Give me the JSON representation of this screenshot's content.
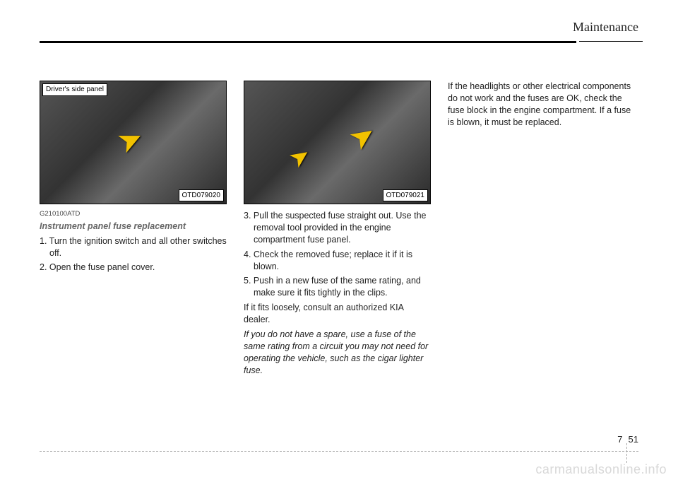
{
  "header": {
    "title": "Maintenance"
  },
  "col1": {
    "figure": {
      "topLeftTag": "Driver's side panel",
      "bottomRightTag": "OTD079020"
    },
    "code": "G210100ATD",
    "subhead": "Instrument panel fuse replacement",
    "steps": [
      "1. Turn the ignition switch and all other switches off.",
      "2. Open the fuse panel cover."
    ]
  },
  "col2": {
    "figure": {
      "bottomRightTag": "OTD079021"
    },
    "steps": [
      "3. Pull the suspected fuse straight out. Use the removal tool provided in the engine compartment fuse panel.",
      "4. Check the removed fuse; replace it if it is blown.",
      "5. Push in a new fuse of the same rating, and make sure it fits tightly in the clips."
    ],
    "para1": "If it fits loosely, consult an authorized KIA dealer.",
    "para2": "If you do not have a spare, use a fuse of the same rating from a circuit you may not need for operating the vehicle, such as the cigar lighter fuse."
  },
  "col3": {
    "para": "If the headlights or other electrical components do not work and the fuses are OK, check the fuse block in the engine compartment. If a fuse is blown, it must be replaced."
  },
  "footer": {
    "chapter": "7",
    "page": "51"
  },
  "watermark": "carmanualsonline.info"
}
